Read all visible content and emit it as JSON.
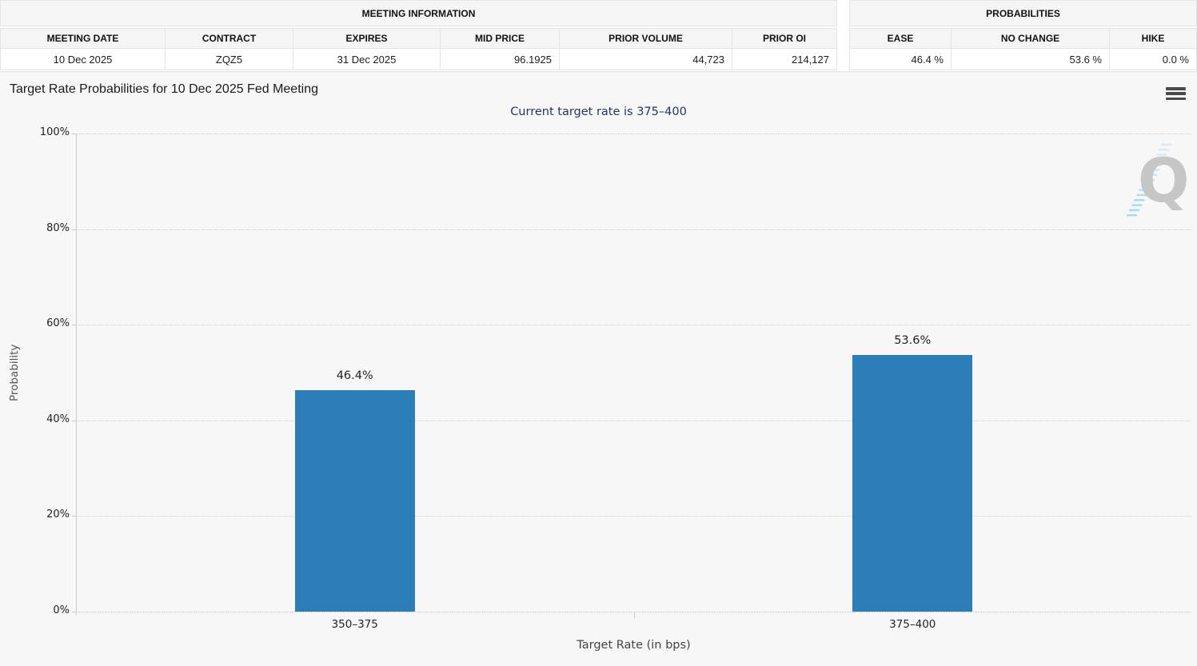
{
  "meeting_info": {
    "title": "MEETING INFORMATION",
    "columns": [
      "MEETING DATE",
      "CONTRACT",
      "EXPIRES",
      "MID PRICE",
      "PRIOR VOLUME",
      "PRIOR OI"
    ],
    "row": [
      "10 Dec 2025",
      "ZQZ5",
      "31 Dec 2025",
      "96.1925",
      "44,723",
      "214,127"
    ]
  },
  "probabilities": {
    "title": "PROBABILITIES",
    "columns": [
      "EASE",
      "NO CHANGE",
      "HIKE"
    ],
    "row": [
      "46.4 %",
      "53.6 %",
      "0.0 %"
    ]
  },
  "icons": {
    "menu": "hamburger-menu-icon",
    "watermark": "quikstrike-q-watermark",
    "watermark_letter": "Q"
  },
  "chart_data": {
    "type": "bar",
    "title": "Target Rate Probabilities for 10 Dec 2025 Fed Meeting",
    "subtitle": "Current target rate is 375–400",
    "categories": [
      "350–375",
      "375–400"
    ],
    "values": [
      46.4,
      53.6
    ],
    "data_labels": [
      "46.4%",
      "53.6%"
    ],
    "xlabel": "Target Rate (in bps)",
    "ylabel": "Probability",
    "ylim": [
      0,
      100
    ],
    "yticks": [
      0,
      20,
      40,
      60,
      80,
      100
    ],
    "ytick_labels": [
      "0%",
      "20%",
      "40%",
      "60%",
      "80%",
      "100%"
    ],
    "grid": true,
    "legend": "none",
    "bar_color": "#2b7eb8"
  },
  "colors": {
    "bar": "#2b7eb8",
    "subtitle": "#27336b",
    "chart_background": "#f7f7f7",
    "gridline": "#cfcfcf",
    "table_header_bg": "#f5f5f5"
  }
}
